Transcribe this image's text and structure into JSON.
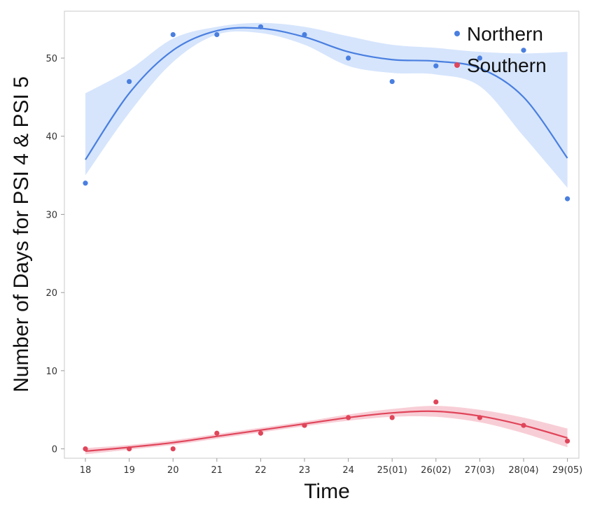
{
  "chart_data": {
    "type": "scatter",
    "title": "",
    "xlabel": "Time",
    "ylabel": "Number of Days for PSI 4 & PSI 5",
    "categories": [
      "18",
      "19",
      "20",
      "21",
      "22",
      "23",
      "24",
      "25(01)",
      "26(02)",
      "27(03)",
      "28(04)",
      "29(05)"
    ],
    "ylim": [
      -1.2,
      56
    ],
    "yticks": [
      0,
      10,
      20,
      30,
      40,
      50
    ],
    "grid": false,
    "legend_position": "top-right",
    "series": [
      {
        "name": "Northern",
        "color": "#4a7fe0",
        "band_color": "#cfe0fb",
        "points": [
          34,
          47,
          53,
          53,
          54,
          53,
          50,
          47,
          49,
          50,
          51,
          32
        ],
        "fit": [
          37,
          45.5,
          51,
          53.5,
          53.8,
          52.7,
          50.8,
          49.8,
          49.6,
          48.7,
          45,
          37.2
        ],
        "band_upper": [
          45.5,
          48.5,
          52.5,
          54,
          54.5,
          54,
          52.8,
          51.7,
          51.3,
          50.8,
          50.6,
          50.8
        ],
        "band_lower": [
          35,
          43,
          49.5,
          53,
          53.2,
          51.7,
          49,
          48.1,
          47.9,
          46.4,
          40,
          33.4
        ]
      },
      {
        "name": "Southern",
        "color": "#e0455a",
        "band_color": "#f7c6cf",
        "points": [
          0,
          0,
          0,
          2,
          2,
          3,
          4,
          4,
          6,
          4,
          3,
          1
        ],
        "fit": [
          -0.3,
          0.2,
          0.8,
          1.6,
          2.4,
          3.2,
          4,
          4.6,
          4.8,
          4.2,
          3,
          1.4
        ],
        "band_upper": [
          0.1,
          0.5,
          1.1,
          1.9,
          2.7,
          3.5,
          4.4,
          5.1,
          5.5,
          5,
          4,
          2.6
        ],
        "band_lower": [
          -0.7,
          -0.1,
          0.5,
          1.3,
          2.1,
          2.9,
          3.6,
          4.1,
          4.1,
          3.4,
          2,
          0.2
        ]
      }
    ]
  }
}
